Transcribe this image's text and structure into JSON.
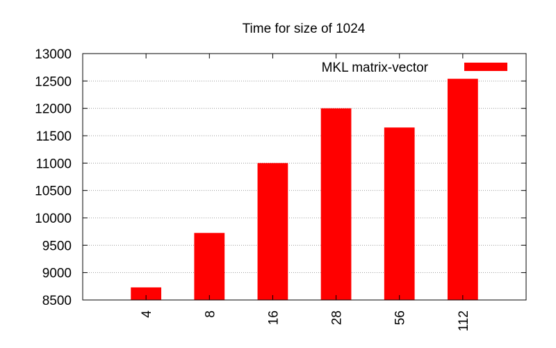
{
  "chart_data": {
    "type": "bar",
    "title": "Time for size of 1024",
    "xlabel": "",
    "ylabel": "",
    "categories": [
      "4",
      "8",
      "16",
      "28",
      "56",
      "112"
    ],
    "series": [
      {
        "name": "MKL matrix-vector",
        "values": [
          8730,
          9725,
          11000,
          12000,
          11650,
          12540
        ],
        "color": "#ff0000"
      }
    ],
    "ylim": [
      8500,
      13000
    ],
    "yticks": [
      8500,
      9000,
      9500,
      10000,
      10500,
      11000,
      11500,
      12000,
      12500,
      13000
    ],
    "grid": "horizontal-dotted",
    "legend_position": "top-right"
  }
}
